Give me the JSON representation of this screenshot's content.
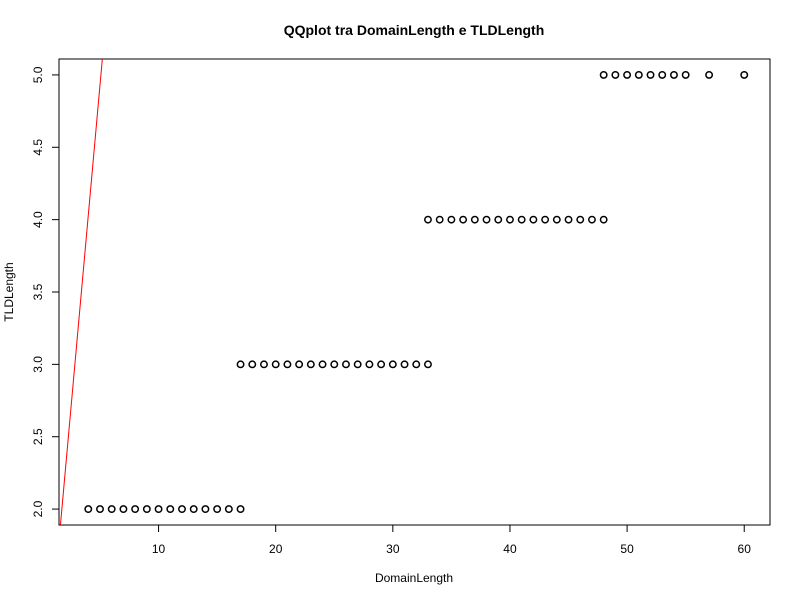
{
  "chart_data": {
    "type": "scatter",
    "title": "QQplot tra DomainLength e TLDLength",
    "xlabel": "DomainLength",
    "ylabel": "TLDLength",
    "xlim": [
      1.5,
      62.2
    ],
    "ylim": [
      1.89,
      5.11
    ],
    "x_ticks": [
      10,
      20,
      30,
      40,
      50,
      60
    ],
    "y_ticks": [
      2.0,
      2.5,
      3.0,
      3.5,
      4.0,
      4.5,
      5.0
    ],
    "y_tick_labels": [
      "2.0",
      "2.5",
      "3.0",
      "3.5",
      "4.0",
      "4.5",
      "5.0"
    ],
    "series": [
      {
        "marker": "open-circle",
        "color": "#000000",
        "groups": [
          {
            "y": 2,
            "x": [
              4,
              5,
              6,
              7,
              8,
              9,
              10,
              11,
              12,
              13,
              14,
              15,
              16,
              17
            ]
          },
          {
            "y": 3,
            "x": [
              17,
              18,
              19,
              20,
              21,
              22,
              23,
              24,
              25,
              26,
              27,
              28,
              29,
              30,
              31,
              32,
              33
            ]
          },
          {
            "y": 4,
            "x": [
              33,
              34,
              35,
              36,
              37,
              38,
              39,
              40,
              41,
              42,
              43,
              44,
              45,
              46,
              47,
              48
            ]
          },
          {
            "y": 5,
            "x": [
              48,
              49,
              50,
              51,
              52,
              53,
              54,
              55,
              57,
              60
            ]
          }
        ]
      }
    ],
    "reference_line": {
      "color": "#ff0000",
      "points": [
        [
          1.6,
          1.87
        ],
        [
          5.2,
          5.11
        ]
      ]
    },
    "grid": false
  }
}
